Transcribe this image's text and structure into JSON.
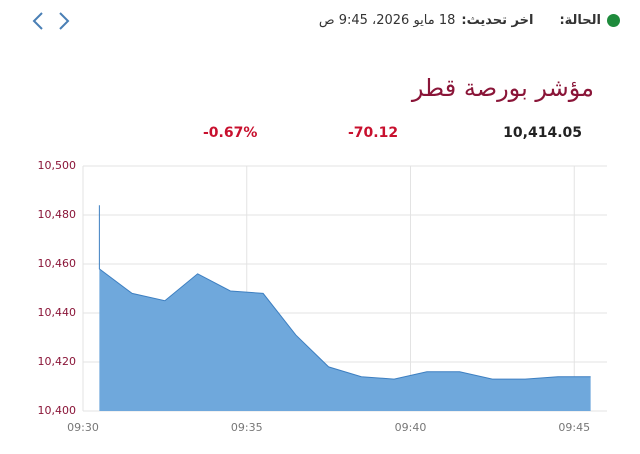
{
  "header": {
    "status_label": "الحالة:",
    "update_label": "اخر تحديث:",
    "update_time": "18 مايو 2026، 9:45 ص"
  },
  "title": "مؤشر بورصة قطر",
  "stats": {
    "last": "10,414.05",
    "change": "-70.12",
    "change_percent": "-0.67%"
  },
  "chart_data": {
    "type": "area",
    "x": [
      0.5,
      0.5,
      1.5,
      2.5,
      3.5,
      4.5,
      5.5,
      6.5,
      7.5,
      8.5,
      9.5,
      10.5,
      11.5,
      12.5,
      13.5,
      14.5,
      15.5
    ],
    "values": [
      10484,
      10458,
      10448,
      10445,
      10456,
      10449,
      10448,
      10431,
      10418,
      10414,
      10413,
      10416,
      10416,
      10413,
      10413,
      10414,
      10414
    ],
    "color": "#6fa8dc",
    "line_color": "#3d7fc1",
    "xlim": [
      0,
      16
    ],
    "xticks": [
      {
        "value": 0,
        "label": "09:30"
      },
      {
        "value": 5,
        "label": "09:35"
      },
      {
        "value": 10,
        "label": "09:40"
      },
      {
        "value": 15,
        "label": "09:45"
      }
    ],
    "ylim": [
      10400,
      10500
    ],
    "yticks": [
      {
        "value": 10400,
        "label": "10,400"
      },
      {
        "value": 10420,
        "label": "10,420"
      },
      {
        "value": 10440,
        "label": "10,440"
      },
      {
        "value": 10460,
        "label": "10,460"
      },
      {
        "value": 10480,
        "label": "10,480"
      },
      {
        "value": 10500,
        "label": "10,500"
      }
    ],
    "grid": true
  }
}
